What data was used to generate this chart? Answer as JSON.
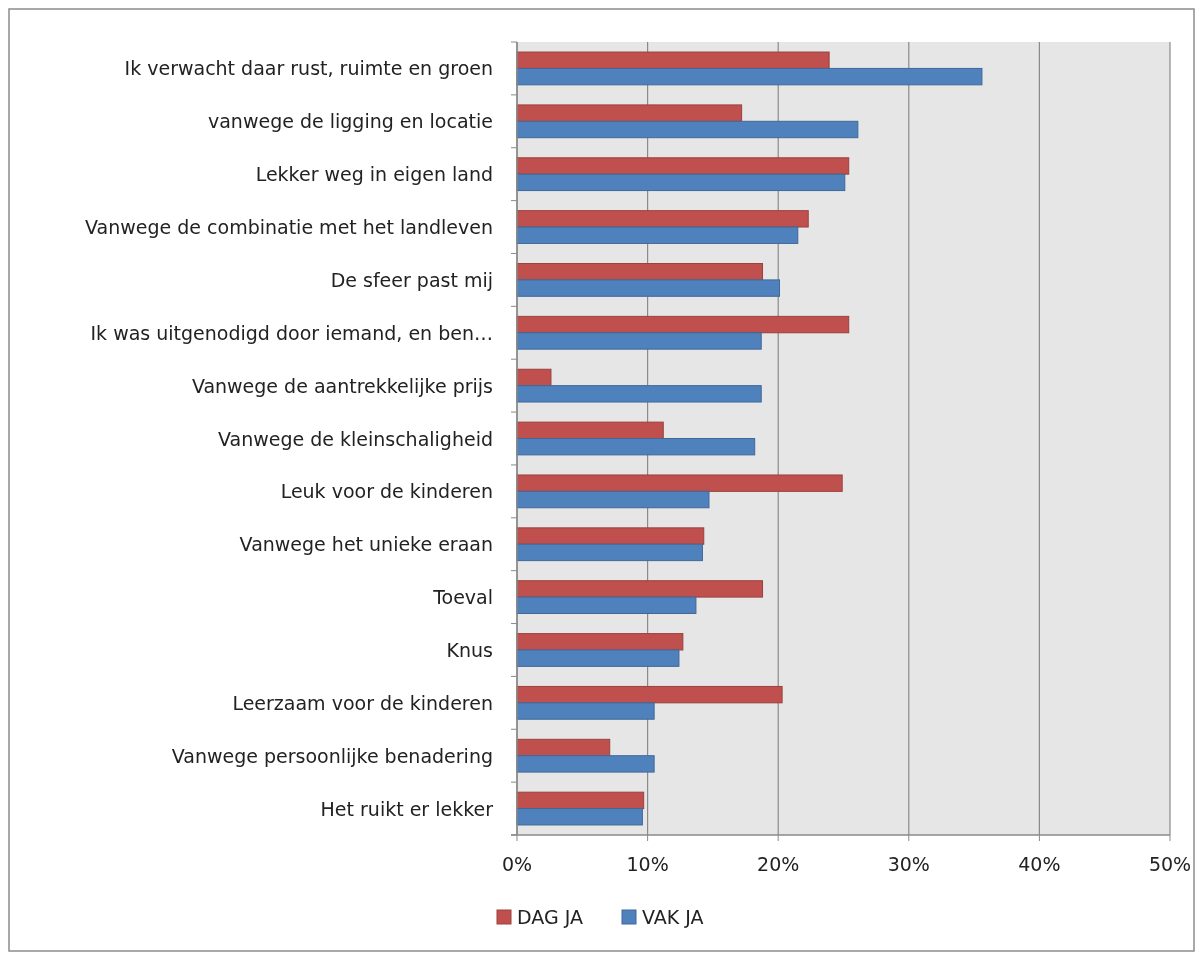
{
  "chart_data": {
    "type": "bar",
    "orientation": "horizontal",
    "categories": [
      "Ik verwacht daar rust, ruimte en groen",
      "vanwege de ligging en locatie",
      "Lekker weg in eigen land",
      "Vanwege de combinatie met het landleven",
      "De sfeer past mij",
      "Ik was uitgenodigd door iemand, en ben…",
      "Vanwege de aantrekkelijke prijs",
      "Vanwege de kleinschaligheid",
      "Leuk voor de kinderen",
      "Vanwege het unieke eraan",
      "Toeval",
      "Knus",
      "Leerzaam voor de kinderen",
      "Vanwege persoonlijke benadering",
      "Het ruikt er lekker"
    ],
    "series": [
      {
        "name": "DAG JA",
        "color": "#c0504d",
        "values": [
          23.9,
          17.2,
          25.4,
          22.3,
          18.8,
          25.4,
          2.6,
          11.2,
          24.9,
          14.3,
          18.8,
          12.7,
          20.3,
          7.1,
          9.7
        ]
      },
      {
        "name": "VAK JA",
        "color": "#4f81bd",
        "values": [
          35.6,
          26.1,
          25.1,
          21.5,
          20.1,
          18.7,
          18.7,
          18.2,
          14.7,
          14.2,
          13.7,
          12.4,
          10.5,
          10.5,
          9.6
        ]
      }
    ],
    "xlim": [
      0,
      50
    ],
    "xticks": [
      {
        "value": 0,
        "label": "0%"
      },
      {
        "value": 10,
        "label": "10%"
      },
      {
        "value": 20,
        "label": "20%"
      },
      {
        "value": 30,
        "label": "30%"
      },
      {
        "value": 40,
        "label": "40%"
      },
      {
        "value": 50,
        "label": "50%"
      }
    ],
    "grid": "x",
    "legend": "bottom"
  }
}
